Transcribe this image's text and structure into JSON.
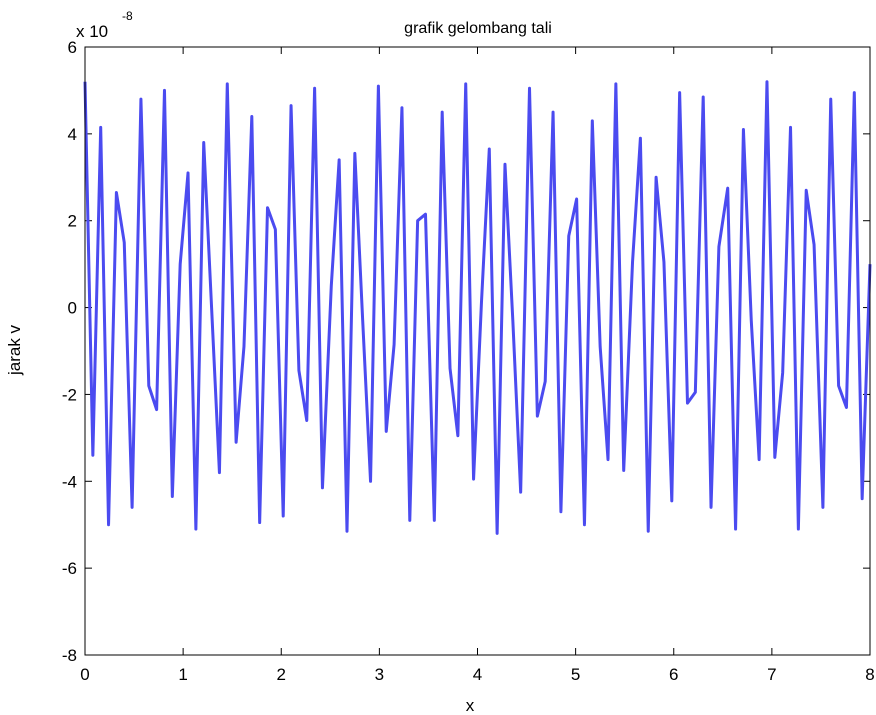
{
  "chart_data": {
    "type": "line",
    "title": "grafik gelombang tali",
    "x_label": "x",
    "y_label": "jarak v",
    "y_multiplier": {
      "base": "x 10",
      "exponent": "-8"
    },
    "color": "#4b4bf0",
    "line_width": 3,
    "xlim": [
      0,
      8
    ],
    "xticks": [
      0,
      1,
      2,
      3,
      4,
      5,
      6,
      7,
      8
    ],
    "ylim": [
      -8,
      6
    ],
    "yticks": [
      -8,
      -6,
      -4,
      -2,
      0,
      2,
      4,
      6
    ],
    "x": [
      0,
      0.08,
      0.16,
      0.24,
      0.32,
      0.4,
      0.48,
      0.57,
      0.65,
      0.73,
      0.81,
      0.89,
      0.97,
      1.05,
      1.13,
      1.21,
      1.29,
      1.37,
      1.45,
      1.54,
      1.62,
      1.7,
      1.78,
      1.86,
      1.94,
      2.02,
      2.1,
      2.18,
      2.26,
      2.34,
      2.42,
      2.51,
      2.59,
      2.67,
      2.75,
      2.83,
      2.91,
      2.99,
      3.07,
      3.15,
      3.23,
      3.31,
      3.39,
      3.47,
      3.56,
      3.64,
      3.72,
      3.8,
      3.88,
      3.96,
      4.04,
      4.12,
      4.2,
      4.28,
      4.36,
      4.44,
      4.53,
      4.61,
      4.69,
      4.77,
      4.85,
      4.93,
      5.01,
      5.09,
      5.17,
      5.25,
      5.33,
      5.41,
      5.49,
      5.58,
      5.66,
      5.74,
      5.82,
      5.9,
      5.98,
      6.06,
      6.14,
      6.22,
      6.3,
      6.38,
      6.46,
      6.55,
      6.63,
      6.71,
      6.79,
      6.87,
      6.95,
      7.03,
      7.11,
      7.19,
      7.27,
      7.35,
      7.43,
      7.52,
      7.6,
      7.68,
      7.76,
      7.84,
      7.92,
      8.0
    ],
    "values": [
      5.2,
      -3.4,
      4.15,
      -5.0,
      2.65,
      1.5,
      -4.6,
      4.8,
      -1.8,
      -2.35,
      5.0,
      -4.35,
      1.0,
      3.1,
      -5.1,
      3.8,
      0,
      -3.8,
      5.15,
      -3.1,
      -0.9,
      4.4,
      -4.95,
      2.3,
      1.8,
      -4.8,
      4.65,
      -1.45,
      -2.6,
      5.05,
      -4.15,
      0.5,
      3.4,
      -5.15,
      3.55,
      -0.3,
      -4.0,
      5.1,
      -2.85,
      -0.85,
      4.6,
      -4.9,
      2.0,
      2.15,
      -4.9,
      4.5,
      -1.4,
      -2.95,
      5.15,
      -3.95,
      0.1,
      3.65,
      -5.2,
      3.3,
      -0.3,
      -4.25,
      5.05,
      -2.5,
      -1.7,
      4.5,
      -4.7,
      1.65,
      2.5,
      -5.0,
      4.3,
      -0.9,
      -3.5,
      5.15,
      -3.75,
      1.05,
      3.9,
      -5.15,
      3.0,
      1.05,
      -4.45,
      4.95,
      -2.2,
      -1.95,
      4.85,
      -4.6,
      1.4,
      2.75,
      -5.1,
      4.1,
      -0.3,
      -3.5,
      5.2,
      -3.45,
      -1.5,
      4.15,
      -5.1,
      2.7,
      1.45,
      -4.6,
      4.8,
      -1.8,
      -2.3,
      4.95,
      -4.4,
      1.0
    ]
  }
}
